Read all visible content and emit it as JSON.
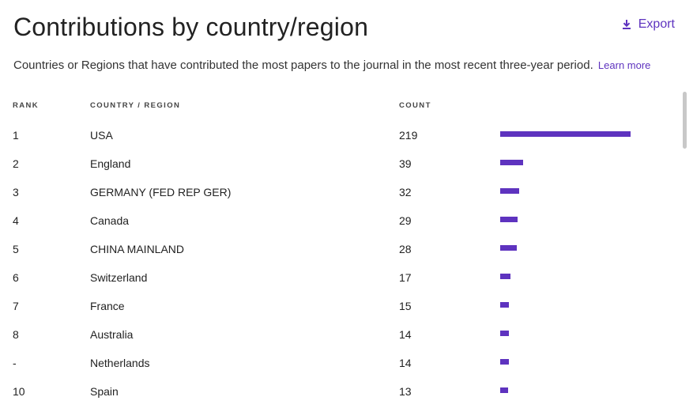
{
  "page": {
    "title": "Contributions by country/region",
    "description": "Countries or Regions that have contributed the most papers to the journal in the most recent three-year period.",
    "learn_more": "Learn more",
    "export_label": "Export"
  },
  "table": {
    "headers": {
      "rank": "RANK",
      "country": "COUNTRY / REGION",
      "count": "COUNT"
    },
    "max_count": 219,
    "rows": [
      {
        "rank": "1",
        "country": "USA",
        "count": "219",
        "value": 219
      },
      {
        "rank": "2",
        "country": "England",
        "count": "39",
        "value": 39
      },
      {
        "rank": "3",
        "country": "GERMANY (FED REP GER)",
        "count": "32",
        "value": 32
      },
      {
        "rank": "4",
        "country": "Canada",
        "count": "29",
        "value": 29
      },
      {
        "rank": "5",
        "country": "CHINA MAINLAND",
        "count": "28",
        "value": 28
      },
      {
        "rank": "6",
        "country": "Switzerland",
        "count": "17",
        "value": 17
      },
      {
        "rank": "7",
        "country": "France",
        "count": "15",
        "value": 15
      },
      {
        "rank": "8",
        "country": "Australia",
        "count": "14",
        "value": 14
      },
      {
        "rank": "-",
        "country": "Netherlands",
        "count": "14",
        "value": 14
      },
      {
        "rank": "10",
        "country": "Spain",
        "count": "13",
        "value": 13
      }
    ]
  },
  "colors": {
    "accent": "#5e33bf",
    "text": "#222222"
  },
  "icons": {
    "export": "download-icon"
  }
}
